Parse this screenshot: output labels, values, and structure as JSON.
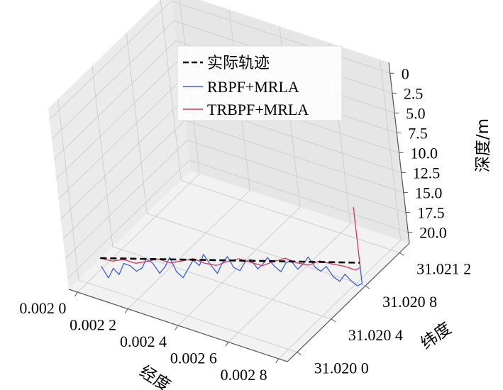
{
  "chart_data": {
    "type": "line",
    "projection": "3d",
    "xlabel": "经度",
    "ylabel": "纬度",
    "zlabel": "深度/m",
    "x_ticks": [
      "0.002 0",
      "0.002 2",
      "0.002 4",
      "0.002 6",
      "0.002 8"
    ],
    "y_ticks": [
      "31.020 0",
      "31.020 4",
      "31.020 8",
      "31.021 2"
    ],
    "z_ticks": [
      "0",
      "2.5",
      "5.0",
      "7.5",
      "10.0",
      "12.5",
      "15.0",
      "17.5",
      "20.0"
    ],
    "z_inverted": true,
    "grid": true,
    "legend_position": "top-center",
    "series": [
      {
        "name": "实际轨迹",
        "style": "dashed",
        "color": "#000000",
        "x": [
          0.002,
          0.0029
        ],
        "y": [
          31.02015,
          31.02095
        ],
        "z": [
          20.0,
          20.0
        ]
      },
      {
        "name": "RBPF+MRLA",
        "style": "solid",
        "color": "#3b5fd9",
        "x": [
          0.002,
          0.00202,
          0.00204,
          0.00206,
          0.00208,
          0.0021,
          0.00212,
          0.00214,
          0.00216,
          0.00218,
          0.0022,
          0.00222,
          0.00224,
          0.00226,
          0.00228,
          0.0023,
          0.00232,
          0.00234,
          0.00236,
          0.00238,
          0.0024,
          0.00242,
          0.00244,
          0.00246,
          0.00248,
          0.0025,
          0.00252,
          0.00254,
          0.00256,
          0.00258,
          0.0026,
          0.00262,
          0.00264,
          0.00266,
          0.00268,
          0.0027,
          0.00272,
          0.00274,
          0.00276,
          0.00278,
          0.0028,
          0.00282,
          0.00284,
          0.00286,
          0.00288,
          0.0029,
          0.0029
        ],
        "y": [
          31.02015,
          31.02017,
          31.02019,
          31.0202,
          31.02022,
          31.02024,
          31.02026,
          31.02028,
          31.02029,
          31.02031,
          31.02033,
          31.02035,
          31.02037,
          31.02038,
          31.0204,
          31.02042,
          31.02044,
          31.02046,
          31.02047,
          31.02049,
          31.02051,
          31.02053,
          31.02055,
          31.02056,
          31.02058,
          31.0206,
          31.02062,
          31.02064,
          31.02065,
          31.02067,
          31.02069,
          31.02071,
          31.02073,
          31.02074,
          31.02076,
          31.02078,
          31.0208,
          31.02082,
          31.02083,
          31.02085,
          31.02087,
          31.02089,
          31.02091,
          31.02092,
          31.02094,
          31.02095,
          31.02095
        ],
        "z": [
          21.0,
          22.5,
          21.3,
          22.0,
          20.6,
          20.9,
          21.6,
          21.2,
          20.0,
          20.5,
          21.8,
          21.0,
          19.8,
          21.5,
          22.3,
          21.2,
          20.1,
          20.8,
          19.3,
          20.6,
          21.7,
          20.4,
          19.6,
          20.9,
          21.3,
          20.2,
          19.9,
          21.1,
          20.5,
          19.6,
          20.7,
          21.4,
          20.3,
          19.9,
          21.0,
          20.4,
          19.5,
          20.8,
          21.2,
          20.6,
          21.9,
          22.5,
          21.6,
          22.3,
          23.0,
          22.6,
          20.0
        ]
      },
      {
        "name": "TRBPF+MRLA",
        "style": "solid",
        "color": "#d9395c",
        "x": [
          0.002,
          0.00204,
          0.00208,
          0.00212,
          0.00216,
          0.0022,
          0.00224,
          0.00228,
          0.00232,
          0.00236,
          0.0024,
          0.00244,
          0.00248,
          0.00252,
          0.00256,
          0.0026,
          0.00264,
          0.00268,
          0.00272,
          0.00276,
          0.0028,
          0.00284,
          0.00288,
          0.0029,
          0.0029
        ],
        "y": [
          31.02015,
          31.02019,
          31.02022,
          31.02026,
          31.02029,
          31.02033,
          31.02037,
          31.0204,
          31.02044,
          31.02047,
          31.02051,
          31.02055,
          31.02058,
          31.02062,
          31.02065,
          31.02069,
          31.02073,
          31.02076,
          31.0208,
          31.02083,
          31.02087,
          31.02091,
          31.02094,
          31.02095,
          31.02095
        ],
        "z": [
          20.0,
          20.4,
          20.1,
          20.6,
          20.3,
          20.0,
          20.5,
          20.2,
          19.9,
          20.4,
          20.7,
          20.2,
          19.8,
          20.3,
          20.6,
          20.1,
          19.7,
          20.2,
          20.5,
          19.9,
          20.3,
          20.6,
          21.0,
          20.6,
          13.0
        ]
      }
    ]
  }
}
